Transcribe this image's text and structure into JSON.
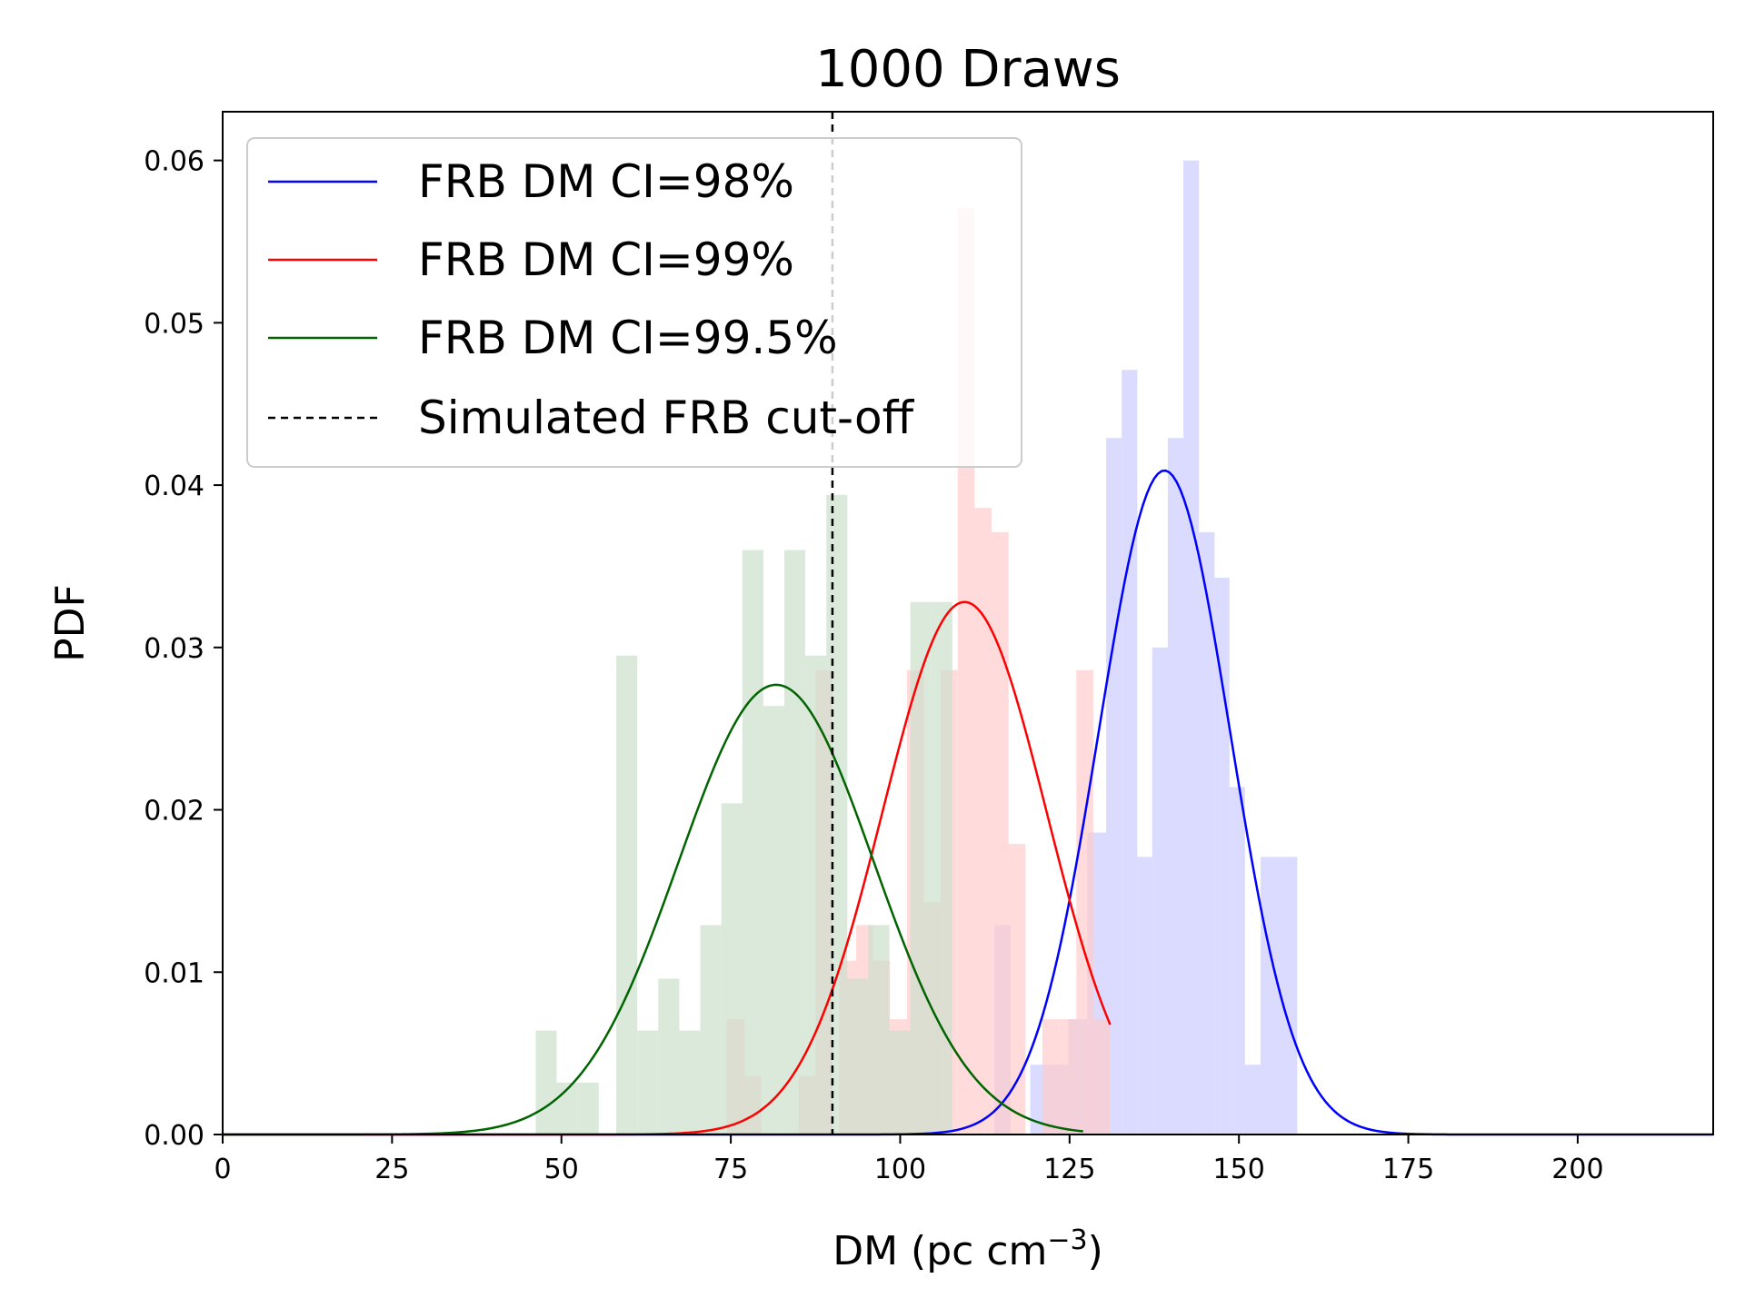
{
  "chart_data": {
    "type": "histogram",
    "title": "1000 Draws",
    "xlabel_main": "DM (pc cm",
    "xlabel_sup": "−3",
    "xlabel_close": ")",
    "ylabel": "PDF",
    "xlim": [
      0,
      220
    ],
    "ylim": [
      0,
      0.063
    ],
    "xticks": [
      0,
      25,
      50,
      75,
      100,
      125,
      150,
      175,
      200
    ],
    "yticks": [
      0.0,
      0.01,
      0.02,
      0.03,
      0.04,
      0.05,
      0.06
    ],
    "ytick_labels": [
      "0.00",
      "0.01",
      "0.02",
      "0.03",
      "0.04",
      "0.05",
      "0.06"
    ],
    "legend_position": "upper-left",
    "series": [
      {
        "name": "FRB DM CI=98%",
        "line_color": "#0000ff",
        "hist_color": "#ccccff",
        "hist": {
          "bins": [
            [
              113.9,
              116.3,
              0.0129
            ],
            [
              119.2,
              122.0,
              0.0043
            ],
            [
              122.0,
              124.8,
              0.0043
            ],
            [
              124.8,
              127.6,
              0.0071
            ],
            [
              127.6,
              130.4,
              0.0186
            ],
            [
              130.4,
              132.7,
              0.0429
            ],
            [
              132.7,
              135.0,
              0.0471
            ],
            [
              135.0,
              137.2,
              0.0171
            ],
            [
              137.2,
              139.5,
              0.03
            ],
            [
              139.5,
              141.8,
              0.0429
            ],
            [
              141.8,
              144.1,
              0.06
            ],
            [
              144.1,
              146.4,
              0.0371
            ],
            [
              146.4,
              148.6,
              0.0343
            ],
            [
              148.6,
              150.9,
              0.0214
            ],
            [
              150.9,
              153.2,
              0.0043
            ],
            [
              153.2,
              158.6,
              0.0171
            ]
          ]
        },
        "curve": {
          "mean": 139,
          "sd": 9.7,
          "peak": 0.0409,
          "x_range": [
            0,
            220
          ]
        }
      },
      {
        "name": "FRB DM CI=99%",
        "line_color": "#ff0000",
        "hist_color": "#ffcccc",
        "hist": {
          "bins": [
            [
              74.4,
              77.0,
              0.0071
            ],
            [
              77.0,
              79.5,
              0.0036
            ],
            [
              85.0,
              87.5,
              0.0036
            ],
            [
              87.5,
              90.0,
              0.0286
            ],
            [
              91.0,
              93.5,
              0.0107
            ],
            [
              93.5,
              96.0,
              0.0129
            ],
            [
              96.0,
              98.5,
              0.0107
            ],
            [
              98.5,
              101.0,
              0.0071
            ],
            [
              101.0,
              103.5,
              0.0286
            ],
            [
              103.5,
              106.0,
              0.0143
            ],
            [
              106.0,
              108.5,
              0.0286
            ],
            [
              108.5,
              111.0,
              0.0571
            ],
            [
              111.0,
              113.5,
              0.0386
            ],
            [
              113.5,
              116.0,
              0.0371
            ],
            [
              116.0,
              118.5,
              0.0179
            ],
            [
              118.5,
              121.0,
              0.0
            ],
            [
              121.0,
              123.5,
              0.0071
            ],
            [
              123.5,
              126.0,
              0.0071
            ],
            [
              126.0,
              128.5,
              0.0286
            ],
            [
              128.5,
              131.0,
              0.0071
            ]
          ]
        },
        "curve": {
          "mean": 109.5,
          "sd": 12.1,
          "peak": 0.0328,
          "x_range": [
            0,
            131
          ]
        }
      },
      {
        "name": "FRB DM CI=99.5%",
        "line_color": "#006400",
        "hist_color": "#cce0cc",
        "hist": {
          "bins": [
            [
              46.2,
              49.3,
              0.0064
            ],
            [
              49.3,
              52.4,
              0.0032
            ],
            [
              52.4,
              55.5,
              0.0032
            ],
            [
              58.1,
              61.2,
              0.0295
            ],
            [
              61.2,
              64.3,
              0.0064
            ],
            [
              64.3,
              67.4,
              0.0096
            ],
            [
              67.4,
              70.5,
              0.0064
            ],
            [
              70.5,
              73.6,
              0.0129
            ],
            [
              73.6,
              76.7,
              0.0204
            ],
            [
              76.7,
              79.8,
              0.036
            ],
            [
              79.8,
              82.9,
              0.0264
            ],
            [
              82.9,
              86.0,
              0.036
            ],
            [
              86.0,
              89.1,
              0.0295
            ],
            [
              89.1,
              92.2,
              0.0394
            ],
            [
              92.2,
              95.3,
              0.0096
            ],
            [
              95.3,
              98.4,
              0.0129
            ],
            [
              98.4,
              101.5,
              0.0064
            ],
            [
              101.5,
              104.6,
              0.0328
            ],
            [
              104.6,
              107.7,
              0.0328
            ]
          ]
        },
        "curve": {
          "mean": 81.7,
          "sd": 14.4,
          "peak": 0.0277,
          "x_range": [
            0,
            127
          ]
        }
      },
      {
        "name": "Simulated FRB cut-off",
        "line_color": "#000000",
        "line_style": "dashed",
        "vline_x": 90
      }
    ]
  }
}
